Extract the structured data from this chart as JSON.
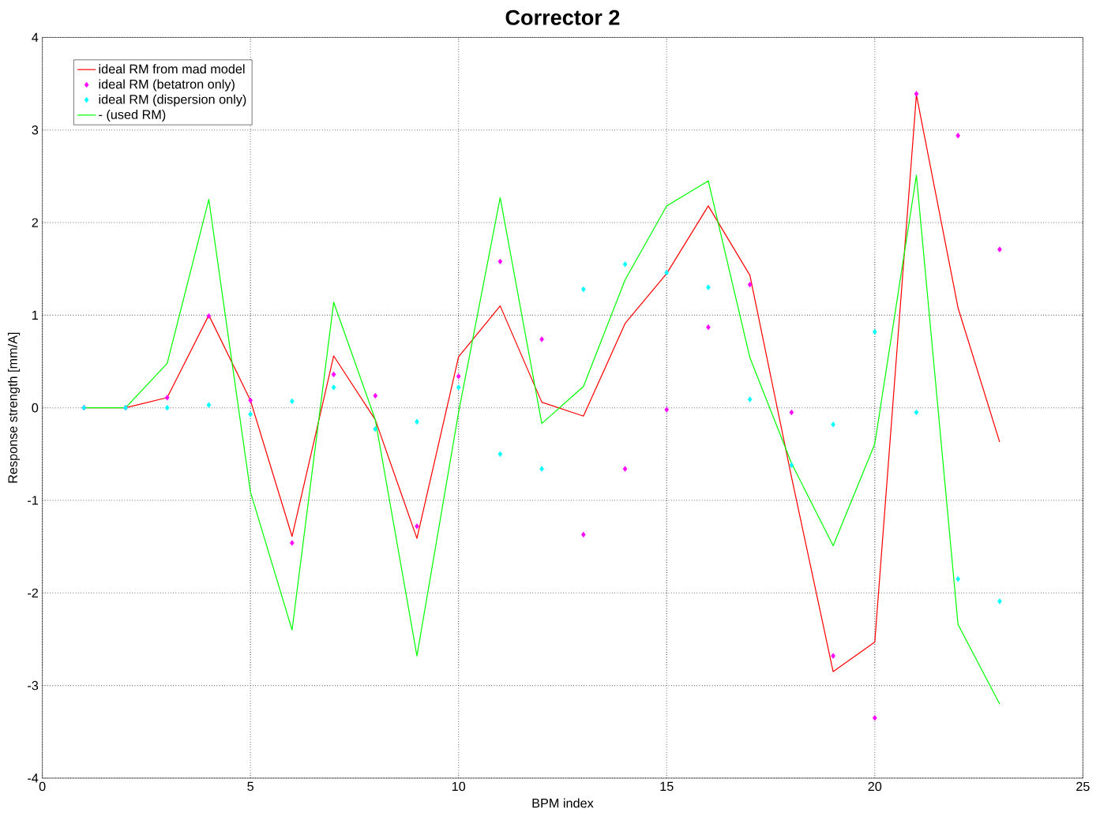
{
  "chart_data": {
    "type": "line",
    "title": "Corrector 2",
    "xlabel": "BPM index",
    "ylabel": "Response strength [mm/A]",
    "x": [
      1,
      2,
      3,
      4,
      5,
      6,
      7,
      8,
      9,
      10,
      11,
      12,
      13,
      14,
      15,
      16,
      17,
      18,
      19,
      20,
      21,
      22,
      23
    ],
    "xlim": [
      0,
      25
    ],
    "xticks": [
      0,
      5,
      10,
      15,
      20,
      25
    ],
    "ylim": [
      -4,
      4
    ],
    "yticks": [
      -4,
      -3,
      -2,
      -1,
      0,
      1,
      2,
      3,
      4
    ],
    "grid": true,
    "legend": "top left",
    "series": [
      {
        "name": "ideal RM from mad model",
        "color": "#ff0000",
        "marker": "none",
        "values": [
          0,
          0,
          0.11,
          1.0,
          0.08,
          -1.39,
          0.56,
          -0.13,
          -1.41,
          0.55,
          1.1,
          0.06,
          -0.09,
          0.91,
          1.45,
          2.18,
          1.43,
          -0.75,
          -2.85,
          -2.53,
          3.38,
          1.08,
          -0.37
        ]
      },
      {
        "name": "ideal RM (betatron only)",
        "type": "scatter",
        "color": "#ff00ff",
        "marker": "diamond",
        "values": [
          0,
          0,
          0.11,
          0.99,
          0.08,
          -1.46,
          0.36,
          0.13,
          -1.28,
          0.34,
          1.58,
          0.74,
          -1.37,
          -0.66,
          -0.02,
          0.87,
          1.33,
          -0.05,
          -2.68,
          -3.35,
          3.39,
          2.94,
          1.71
        ]
      },
      {
        "name": "ideal RM (dispersion only)",
        "type": "scatter",
        "color": "#00ffff",
        "marker": "diamond",
        "values": [
          0,
          0,
          0,
          0.03,
          -0.07,
          0.07,
          0.22,
          -0.23,
          -0.15,
          0.22,
          -0.5,
          -0.66,
          1.28,
          1.55,
          1.46,
          1.3,
          0.09,
          -0.62,
          -0.18,
          0.82,
          -0.05,
          -1.85,
          -2.09
        ]
      },
      {
        "name": "- (used RM)",
        "color": "#00ff00",
        "marker": "none",
        "values": [
          0,
          0,
          0.48,
          2.25,
          -0.91,
          -2.4,
          1.14,
          -0.13,
          -2.68,
          -0.05,
          2.27,
          -0.17,
          0.23,
          1.38,
          2.18,
          2.45,
          0.54,
          -0.6,
          -1.49,
          -0.39,
          2.51,
          -2.34,
          -3.2
        ]
      }
    ]
  }
}
